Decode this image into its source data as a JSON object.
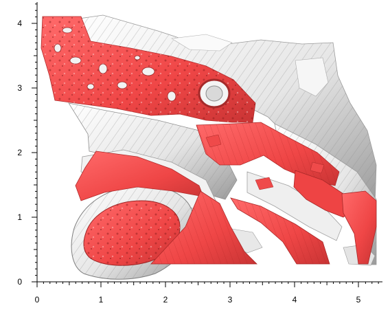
{
  "axes": {
    "x_ticks": [
      "0",
      "1",
      "2",
      "3",
      "4",
      "5"
    ],
    "y_ticks": [
      "0",
      "1",
      "2",
      "3",
      "4"
    ],
    "x_range": [
      0,
      5.4
    ],
    "y_range": [
      0,
      4.3
    ]
  },
  "colors": {
    "surface_red": "#f04a4a",
    "surface_red_dark": "#c83232",
    "surface_white": "#f4f4f4",
    "surface_gray": "#b9b9b9",
    "surface_shadow": "#7a7a7a",
    "axis": "#000000",
    "background": "#ffffff"
  },
  "render": {
    "type": "3d-surface-render",
    "subject": "red-and-white-textured-mesh"
  }
}
